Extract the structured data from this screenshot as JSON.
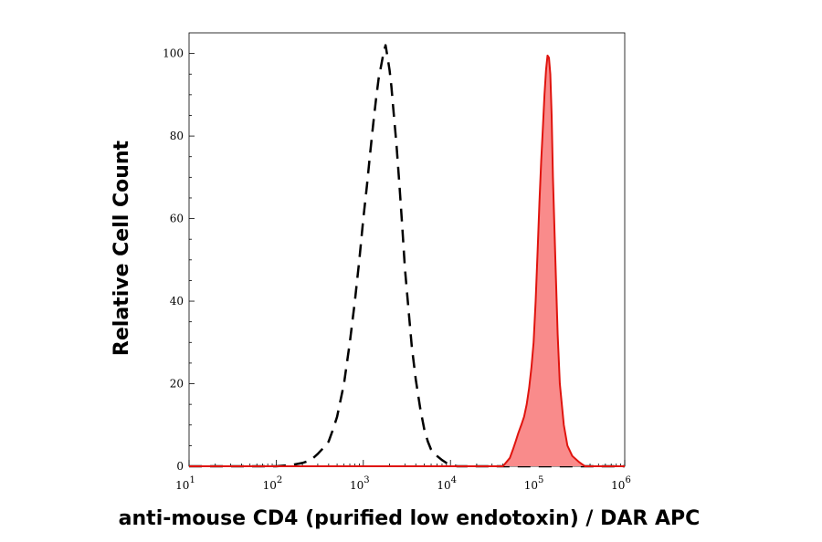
{
  "chart_data": {
    "type": "area",
    "xlabel": "anti-mouse CD4 (purified low endotoxin) / DAR APC",
    "ylabel": "Relative Cell Count",
    "x_scale": "log",
    "xlim": [
      10,
      1000000
    ],
    "ylim": [
      0,
      105
    ],
    "x_ticks": [
      {
        "value": 10,
        "base": "10",
        "exp": "1"
      },
      {
        "value": 100,
        "base": "10",
        "exp": "2"
      },
      {
        "value": 1000,
        "base": "10",
        "exp": "3"
      },
      {
        "value": 10000,
        "base": "10",
        "exp": "4"
      },
      {
        "value": 100000,
        "base": "10",
        "exp": "5"
      },
      {
        "value": 1000000,
        "base": "10",
        "exp": "6"
      }
    ],
    "y_ticks": [
      0,
      20,
      40,
      60,
      80,
      100
    ],
    "grid": false,
    "series": [
      {
        "style": "dashed-outline",
        "color": "#000000",
        "x": [
          10,
          100,
          150,
          200,
          250,
          300,
          350,
          400,
          450,
          500,
          600,
          700,
          800,
          900,
          1000,
          1100,
          1200,
          1300,
          1400,
          1500,
          1600,
          1700,
          1800,
          1900,
          2000,
          2100,
          2200,
          2400,
          2600,
          2800,
          3000,
          3300,
          3600,
          4000,
          4500,
          5000,
          5500,
          6000,
          6500,
          7000,
          8000,
          9000,
          10000,
          12000,
          100000,
          1000000
        ],
        "y": [
          0,
          0,
          0.3,
          0.8,
          1.5,
          3,
          4.5,
          6,
          9,
          12,
          20,
          30,
          40,
          50,
          60,
          68,
          76,
          83,
          89,
          94,
          97,
          100,
          102,
          99,
          96,
          92,
          87,
          78,
          68,
          58,
          48,
          38,
          29,
          21,
          14,
          9,
          6,
          4,
          3,
          2.5,
          1.5,
          0.8,
          0.3,
          0,
          0,
          0
        ]
      },
      {
        "style": "filled",
        "color": "#e0140e",
        "fill": "#f98b8b",
        "x": [
          10,
          40000,
          48000,
          52000,
          56000,
          60000,
          65000,
          70000,
          75000,
          80000,
          85000,
          90000,
          95000,
          100000,
          105000,
          110000,
          115000,
          120000,
          125000,
          130000,
          135000,
          140000,
          145000,
          150000,
          160000,
          170000,
          180000,
          200000,
          220000,
          250000,
          300000,
          350000,
          1000000
        ],
        "y": [
          0,
          0,
          2,
          4,
          6,
          8,
          10,
          12,
          15,
          19,
          24,
          30,
          40,
          52,
          64,
          74,
          82,
          90,
          96,
          99.5,
          99,
          95,
          85,
          70,
          50,
          32,
          20,
          10,
          5,
          2.5,
          1,
          0,
          0
        ]
      }
    ]
  }
}
